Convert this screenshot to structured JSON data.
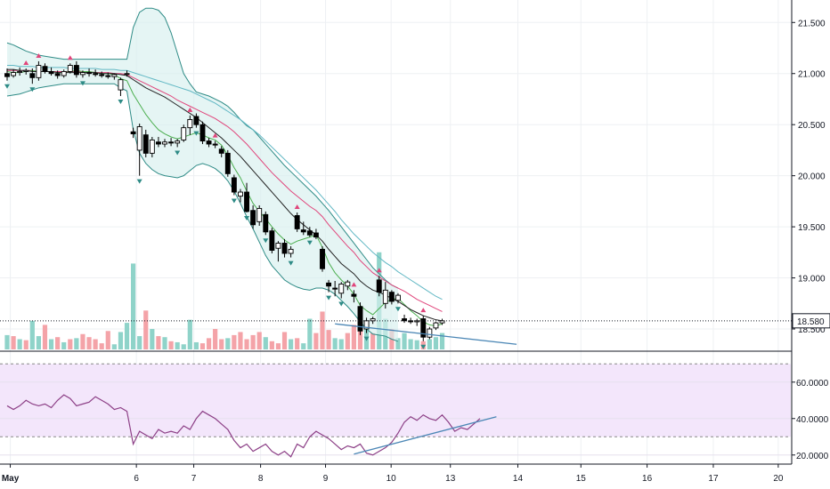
{
  "chart_data": [
    {
      "type": "candlestick",
      "ylim": [
        18.3,
        21.72
      ],
      "y_ticks": [
        "21.500",
        "21.000",
        "20.500",
        "20.000",
        "19.500",
        "19.000",
        "18.500"
      ],
      "last_price_label": "18.580",
      "last_price": 18.58,
      "x_ticks": [
        {
          "label": "May",
          "x": 0.5
        },
        {
          "label": "6",
          "x": 20.5
        },
        {
          "label": "7",
          "x": 29.6
        },
        {
          "label": "8",
          "x": 40.2
        },
        {
          "label": "9",
          "x": 50.5
        },
        {
          "label": "10",
          "x": 60.9
        },
        {
          "label": "13",
          "x": 70.3
        },
        {
          "label": "14",
          "x": 81.0
        },
        {
          "label": "15",
          "x": 91.0
        },
        {
          "label": "16",
          "x": 101.5
        },
        {
          "label": "17",
          "x": 112.0
        },
        {
          "label": "20",
          "x": 122.3
        }
      ],
      "candles": [
        [
          21.0,
          21.05,
          20.93,
          20.97
        ],
        [
          20.98,
          21.04,
          20.96,
          21.01
        ],
        [
          21.01,
          21.06,
          20.98,
          21.02
        ],
        [
          21.02,
          21.05,
          20.99,
          21.03
        ],
        [
          21.0,
          21.05,
          20.9,
          20.96
        ],
        [
          20.96,
          21.12,
          20.93,
          21.08
        ],
        [
          21.07,
          21.1,
          21.0,
          21.02
        ],
        [
          21.02,
          21.06,
          20.98,
          21.0
        ],
        [
          21.0,
          21.03,
          20.95,
          20.98
        ],
        [
          20.98,
          21.04,
          20.96,
          21.02
        ],
        [
          21.02,
          21.1,
          21.0,
          21.08
        ],
        [
          21.08,
          21.12,
          20.96,
          20.99
        ],
        [
          20.99,
          21.03,
          20.96,
          21.01
        ],
        [
          21.01,
          21.05,
          20.97,
          21.0
        ],
        [
          21.0,
          21.04,
          20.97,
          20.99
        ],
        [
          20.99,
          21.02,
          20.96,
          20.98
        ],
        [
          20.98,
          21.01,
          20.95,
          20.97
        ],
        [
          20.97,
          21.0,
          20.94,
          20.99
        ],
        [
          20.84,
          20.96,
          20.78,
          20.94
        ],
        [
          21.0,
          21.03,
          20.97,
          21.0
        ],
        [
          20.43,
          20.47,
          20.37,
          20.41
        ],
        [
          20.25,
          20.51,
          20.0,
          20.48
        ],
        [
          20.4,
          20.45,
          20.18,
          20.22
        ],
        [
          20.22,
          20.38,
          20.18,
          20.35
        ],
        [
          20.33,
          20.38,
          20.28,
          20.31
        ],
        [
          20.31,
          20.36,
          20.28,
          20.33
        ],
        [
          20.33,
          20.37,
          20.29,
          20.32
        ],
        [
          20.32,
          20.36,
          20.28,
          20.34
        ],
        [
          20.35,
          20.5,
          20.33,
          20.47
        ],
        [
          20.47,
          20.59,
          20.4,
          20.55
        ],
        [
          20.58,
          20.61,
          20.47,
          20.5
        ],
        [
          20.5,
          20.53,
          20.31,
          20.34
        ],
        [
          20.34,
          20.37,
          20.28,
          20.31
        ],
        [
          20.31,
          20.34,
          20.27,
          20.3
        ],
        [
          20.26,
          20.29,
          20.18,
          20.22
        ],
        [
          20.22,
          20.25,
          19.99,
          20.02
        ],
        [
          19.98,
          20.01,
          19.81,
          19.84
        ],
        [
          19.8,
          19.87,
          19.74,
          19.84
        ],
        [
          19.84,
          19.93,
          19.64,
          19.65
        ],
        [
          19.66,
          19.71,
          19.48,
          19.52
        ],
        [
          19.55,
          19.71,
          19.51,
          19.68
        ],
        [
          19.62,
          19.65,
          19.42,
          19.45
        ],
        [
          19.46,
          19.49,
          19.24,
          19.27
        ],
        [
          19.29,
          19.36,
          19.16,
          19.34
        ],
        [
          19.34,
          19.38,
          19.2,
          19.24
        ],
        [
          19.24,
          19.31,
          19.2,
          19.28
        ],
        [
          19.61,
          19.64,
          19.45,
          19.48
        ],
        [
          19.47,
          19.55,
          19.42,
          19.45
        ],
        [
          19.46,
          19.5,
          19.4,
          19.42
        ],
        [
          19.44,
          19.48,
          19.38,
          19.4
        ],
        [
          19.28,
          19.31,
          19.06,
          19.09
        ],
        [
          18.95,
          18.98,
          18.86,
          18.92
        ],
        [
          18.9,
          18.97,
          18.82,
          18.89
        ],
        [
          18.85,
          18.96,
          18.8,
          18.94
        ],
        [
          18.92,
          18.98,
          18.88,
          18.96
        ],
        [
          18.84,
          18.88,
          18.76,
          18.82
        ],
        [
          18.72,
          18.76,
          18.44,
          18.48
        ],
        [
          18.5,
          18.61,
          18.46,
          18.58
        ],
        [
          18.58,
          18.62,
          18.55,
          18.6
        ],
        [
          18.98,
          19.02,
          18.82,
          18.86
        ],
        [
          18.75,
          18.96,
          18.7,
          18.88
        ],
        [
          18.86,
          18.88,
          18.74,
          18.77
        ],
        [
          18.78,
          18.85,
          18.75,
          18.83
        ],
        [
          18.6,
          18.64,
          18.56,
          18.58
        ],
        [
          18.58,
          18.61,
          18.55,
          18.57
        ],
        [
          18.57,
          18.6,
          18.53,
          18.58
        ],
        [
          18.6,
          18.63,
          18.38,
          18.42
        ],
        [
          18.42,
          18.52,
          18.4,
          18.5
        ],
        [
          18.51,
          18.57,
          18.49,
          18.56
        ],
        [
          18.56,
          18.6,
          18.54,
          18.58
        ]
      ],
      "volume": [
        {
          "v": 14,
          "up": true
        },
        {
          "v": 13,
          "up": false
        },
        {
          "v": 10,
          "up": true
        },
        {
          "v": 9,
          "up": false
        },
        {
          "v": 28,
          "up": true
        },
        {
          "v": 13,
          "up": true
        },
        {
          "v": 24,
          "up": false
        },
        {
          "v": 10,
          "up": true
        },
        {
          "v": 12,
          "up": false
        },
        {
          "v": 7,
          "up": true
        },
        {
          "v": 10,
          "up": false
        },
        {
          "v": 11,
          "up": true
        },
        {
          "v": 15,
          "up": false
        },
        {
          "v": 12,
          "up": false
        },
        {
          "v": 10,
          "up": false
        },
        {
          "v": 6,
          "up": false
        },
        {
          "v": 18,
          "up": false
        },
        {
          "v": 5,
          "up": true
        },
        {
          "v": 17,
          "up": true
        },
        {
          "v": 26,
          "up": true
        },
        {
          "v": 84,
          "up": true
        },
        {
          "v": 13,
          "up": true
        },
        {
          "v": 38,
          "up": false
        },
        {
          "v": 20,
          "up": true
        },
        {
          "v": 13,
          "up": false
        },
        {
          "v": 12,
          "up": true
        },
        {
          "v": 8,
          "up": false
        },
        {
          "v": 7,
          "up": true
        },
        {
          "v": 5,
          "up": true
        },
        {
          "v": 29,
          "up": true
        },
        {
          "v": 7,
          "up": true
        },
        {
          "v": 6,
          "up": false
        },
        {
          "v": 11,
          "up": false
        },
        {
          "v": 20,
          "up": false
        },
        {
          "v": 10,
          "up": false
        },
        {
          "v": 11,
          "up": true
        },
        {
          "v": 14,
          "up": false
        },
        {
          "v": 17,
          "up": false
        },
        {
          "v": 10,
          "up": false
        },
        {
          "v": 14,
          "up": false
        },
        {
          "v": 17,
          "up": false
        },
        {
          "v": 12,
          "up": true
        },
        {
          "v": 8,
          "up": false
        },
        {
          "v": 6,
          "up": false
        },
        {
          "v": 17,
          "up": false
        },
        {
          "v": 10,
          "up": true
        },
        {
          "v": 11,
          "up": false
        },
        {
          "v": 6,
          "up": true
        },
        {
          "v": 30,
          "up": true
        },
        {
          "v": 16,
          "up": false
        },
        {
          "v": 37,
          "up": false
        },
        {
          "v": 19,
          "up": false
        },
        {
          "v": 11,
          "up": true
        },
        {
          "v": 10,
          "up": true
        },
        {
          "v": 16,
          "up": false
        },
        {
          "v": 24,
          "up": false
        },
        {
          "v": 34,
          "up": false
        },
        {
          "v": 28,
          "up": true
        },
        {
          "v": 16,
          "up": false
        },
        {
          "v": 95,
          "up": true
        },
        {
          "v": 30,
          "up": true
        },
        {
          "v": 20,
          "up": false
        },
        {
          "v": 11,
          "up": true
        },
        {
          "v": 16,
          "up": true
        },
        {
          "v": 10,
          "up": true
        },
        {
          "v": 9,
          "up": true
        },
        {
          "v": 8,
          "up": false
        },
        {
          "v": 10,
          "up": true
        },
        {
          "v": 12,
          "up": true
        },
        {
          "v": 16,
          "up": true
        }
      ],
      "sma_black": [
        21.04,
        21.04,
        21.03,
        21.03,
        21.02,
        21.02,
        21.02,
        21.02,
        21.01,
        21.01,
        21.01,
        21.01,
        21.01,
        21.01,
        21.01,
        21.0,
        21.0,
        21.0,
        20.99,
        20.98,
        20.94,
        20.9,
        20.86,
        20.83,
        20.8,
        20.77,
        20.73,
        20.69,
        20.65,
        20.61,
        20.57,
        20.52,
        20.47,
        20.42,
        20.37,
        20.31,
        20.25,
        20.19,
        20.12,
        20.05,
        19.98,
        19.91,
        19.84,
        19.77,
        19.7,
        19.63,
        19.57,
        19.52,
        19.47,
        19.42,
        19.36,
        19.28,
        19.21,
        19.14,
        19.09,
        19.04,
        18.97,
        18.92,
        18.88,
        18.86,
        18.83,
        18.8,
        18.77,
        18.73,
        18.69,
        18.66,
        18.63,
        18.61,
        18.59,
        18.58
      ],
      "sma_green": [
        21.02,
        21.01,
        21.01,
        21.02,
        21.03,
        21.02,
        21.02,
        21.02,
        21.01,
        21.01,
        21.02,
        21.03,
        21.02,
        21.02,
        21.01,
        21.0,
        21.0,
        20.99,
        20.95,
        20.93,
        20.8,
        20.7,
        20.6,
        20.52,
        20.45,
        20.41,
        20.38,
        20.36,
        20.38,
        20.4,
        20.42,
        20.4,
        20.37,
        20.35,
        20.3,
        20.2,
        20.08,
        19.98,
        19.85,
        19.73,
        19.65,
        19.58,
        19.5,
        19.43,
        19.37,
        19.33,
        19.36,
        19.38,
        19.4,
        19.42,
        19.3,
        19.15,
        19.05,
        18.98,
        18.92,
        18.84,
        18.73,
        18.68,
        18.64,
        18.7,
        18.76,
        18.79,
        18.8,
        18.74,
        18.68,
        18.63,
        18.57,
        18.54,
        18.53,
        18.55
      ],
      "sma_pink": [
        21.03,
        21.03,
        21.03,
        21.03,
        21.03,
        21.02,
        21.02,
        21.02,
        21.02,
        21.02,
        21.02,
        21.02,
        21.02,
        21.02,
        21.01,
        21.01,
        21.01,
        21.0,
        21.0,
        20.99,
        20.96,
        20.93,
        20.9,
        20.87,
        20.84,
        20.81,
        20.78,
        20.74,
        20.71,
        20.68,
        20.65,
        20.62,
        20.59,
        20.56,
        20.52,
        20.48,
        20.43,
        20.37,
        20.31,
        20.24,
        20.17,
        20.1,
        20.03,
        19.97,
        19.91,
        19.85,
        19.8,
        19.75,
        19.7,
        19.66,
        19.6,
        19.52,
        19.45,
        19.38,
        19.31,
        19.25,
        19.17,
        19.11,
        19.05,
        19.01,
        18.97,
        18.93,
        18.9,
        18.87,
        18.83,
        18.79,
        18.76,
        18.73,
        18.7,
        18.67
      ],
      "sma_teal": [
        21.08,
        21.08,
        21.07,
        21.07,
        21.07,
        21.06,
        21.06,
        21.06,
        21.06,
        21.06,
        21.05,
        21.05,
        21.05,
        21.05,
        21.05,
        21.04,
        21.04,
        21.04,
        21.03,
        21.03,
        21.01,
        20.99,
        20.97,
        20.95,
        20.93,
        20.91,
        20.89,
        20.87,
        20.85,
        20.83,
        20.8,
        20.77,
        20.74,
        20.71,
        20.67,
        20.63,
        20.59,
        20.55,
        20.5,
        20.45,
        20.4,
        20.34,
        20.28,
        20.22,
        20.16,
        20.1,
        20.04,
        19.98,
        19.92,
        19.86,
        19.79,
        19.72,
        19.65,
        19.57,
        19.5,
        19.43,
        19.37,
        19.31,
        19.25,
        19.2,
        19.15,
        19.11,
        19.06,
        19.02,
        18.98,
        18.94,
        18.9,
        18.86,
        18.82,
        18.79
      ],
      "bb_upper": [
        21.3,
        21.28,
        21.25,
        21.22,
        21.2,
        21.18,
        21.17,
        21.16,
        21.15,
        21.14,
        21.14,
        21.14,
        21.14,
        21.14,
        21.14,
        21.14,
        21.14,
        21.14,
        21.14,
        21.14,
        21.45,
        21.6,
        21.64,
        21.64,
        21.62,
        21.55,
        21.4,
        21.2,
        21.0,
        20.9,
        20.82,
        20.8,
        20.78,
        20.75,
        20.72,
        20.68,
        20.62,
        20.55,
        20.49,
        20.45,
        20.38,
        20.31,
        20.24,
        20.17,
        20.1,
        20.04,
        19.98,
        19.92,
        19.86,
        19.8,
        19.73,
        19.66,
        19.58,
        19.5,
        19.42,
        19.34,
        19.26,
        19.18,
        19.1,
        19.04,
        18.98,
        18.93,
        18.9,
        null,
        null,
        null,
        null,
        null,
        null,
        null
      ],
      "bb_lower": [
        20.78,
        20.79,
        20.8,
        20.82,
        20.84,
        20.86,
        20.87,
        20.88,
        20.89,
        20.9,
        20.9,
        20.9,
        20.9,
        20.9,
        20.9,
        20.9,
        20.9,
        20.9,
        20.86,
        20.83,
        20.45,
        20.22,
        20.12,
        20.06,
        20.02,
        20.0,
        19.99,
        19.98,
        20.0,
        20.05,
        20.1,
        20.12,
        20.1,
        20.07,
        20.02,
        19.95,
        19.85,
        19.73,
        19.6,
        19.48,
        19.35,
        19.22,
        19.12,
        19.05,
        18.98,
        18.94,
        18.91,
        18.89,
        18.88,
        18.9,
        18.9,
        18.88,
        18.84,
        18.78,
        18.72,
        18.65,
        18.57,
        18.5,
        18.45,
        18.44,
        18.43,
        18.4,
        18.38,
        null,
        null,
        null,
        null,
        null,
        null,
        null
      ],
      "trendline": [
        [
          52.0,
          18.55
        ],
        [
          80.8,
          18.35
        ]
      ],
      "up_markers": [
        3,
        5,
        10,
        29,
        33,
        46,
        55,
        59,
        66
      ],
      "down_markers": [
        0,
        4,
        12,
        18,
        21,
        27,
        30,
        36,
        38,
        41,
        45,
        48,
        51,
        53,
        57,
        62,
        66
      ],
      "xlim": [
        0,
        128
      ]
    },
    {
      "type": "line",
      "name": "oscillator",
      "y_ticks": [
        "60.0000",
        "40.0000",
        "20.0000"
      ],
      "ylim": [
        15,
        76
      ],
      "band": [
        30,
        70
      ],
      "values": [
        47,
        45,
        47,
        50,
        48,
        47,
        48,
        46,
        50,
        53,
        51,
        47,
        48,
        49,
        52,
        50,
        48,
        45,
        46,
        44,
        26,
        33,
        31,
        29,
        34,
        32,
        33,
        32,
        36,
        34,
        40,
        44,
        42,
        40,
        37,
        34,
        28,
        24,
        26,
        22,
        24,
        26,
        22,
        20,
        22,
        19,
        26,
        24,
        30,
        33,
        31,
        29,
        26,
        23,
        25,
        24,
        26,
        21,
        20,
        22,
        24,
        27,
        32,
        38,
        41,
        39,
        42,
        40,
        39,
        42,
        38,
        33,
        35,
        34,
        37,
        40
      ],
      "trendline": [
        [
          55.0,
          20.5
        ],
        [
          77.6,
          41.0
        ]
      ]
    }
  ]
}
